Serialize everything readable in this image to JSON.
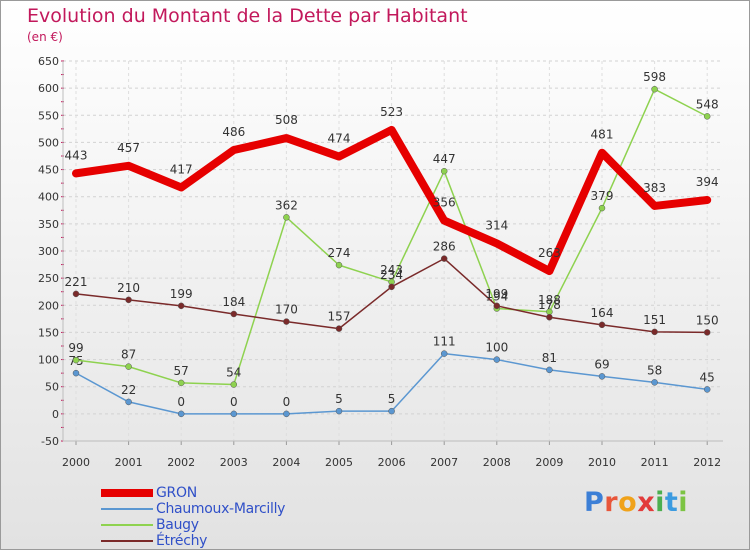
{
  "colors": {
    "title": "#c2185b",
    "axis_tick": "#c2185b",
    "legend_text": "#3050c8",
    "label_text": "#333333"
  },
  "logo": {
    "letters": [
      {
        "ch": "P",
        "color": "#3c7fd6"
      },
      {
        "ch": "r",
        "color": "#e8563a"
      },
      {
        "ch": "o",
        "color": "#f0a21a"
      },
      {
        "ch": "x",
        "color": "#e23b3b"
      },
      {
        "ch": "i",
        "color": "#4caf50"
      },
      {
        "ch": "t",
        "color": "#3c9be0"
      },
      {
        "ch": "i",
        "color": "#7cc443"
      }
    ]
  },
  "chart_data": {
    "type": "line",
    "title": "Evolution du Montant de la Dette par Habitant",
    "subtitle": "(en €)",
    "xlabel": "",
    "ylabel": "",
    "categories": [
      "2000",
      "2001",
      "2002",
      "2003",
      "2004",
      "2005",
      "2006",
      "2007",
      "2008",
      "2009",
      "2010",
      "2011",
      "2012"
    ],
    "ylim": [
      -50,
      650
    ],
    "yticks": [
      -50,
      0,
      50,
      100,
      150,
      200,
      250,
      300,
      350,
      400,
      450,
      500,
      550,
      600,
      650
    ],
    "grid": true,
    "legend_position": "bottom-left",
    "series": [
      {
        "name": "GRON",
        "color": "#e60000",
        "width": 8,
        "marker": false,
        "values": [
          443,
          457,
          417,
          486,
          508,
          474,
          523,
          356,
          314,
          263,
          481,
          383,
          394
        ]
      },
      {
        "name": "Chaumoux-Marcilly",
        "color": "#5b97d1",
        "width": 1.5,
        "marker": true,
        "values": [
          75,
          22,
          0,
          0,
          0,
          5,
          5,
          111,
          100,
          81,
          69,
          58,
          45
        ]
      },
      {
        "name": "Baugy",
        "color": "#8ed24f",
        "width": 1.5,
        "marker": true,
        "values": [
          99,
          87,
          57,
          54,
          362,
          274,
          243,
          447,
          194,
          188,
          379,
          598,
          548
        ]
      },
      {
        "name": "Étréchy",
        "color": "#7a2a2a",
        "width": 1.5,
        "marker": true,
        "values": [
          221,
          210,
          199,
          184,
          170,
          157,
          234,
          286,
          199,
          178,
          164,
          151,
          150
        ]
      }
    ]
  }
}
